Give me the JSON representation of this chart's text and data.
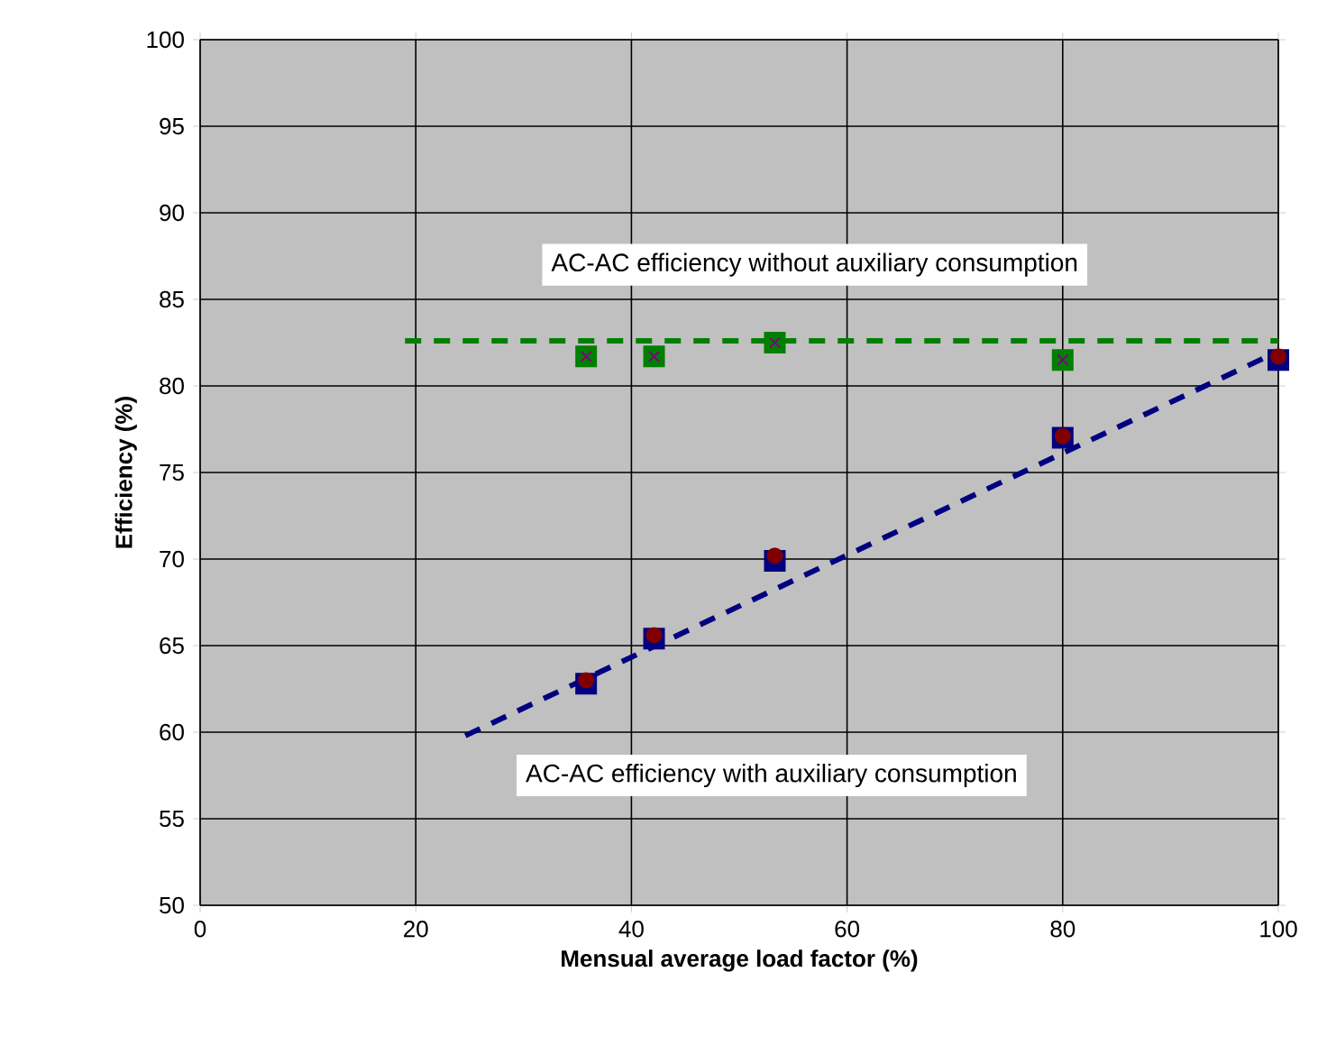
{
  "chart_data": {
    "type": "scatter",
    "xlabel": "Mensual average load factor (%)",
    "ylabel": "Efficiency (%)",
    "xlim": [
      0,
      100
    ],
    "xticks": [
      0,
      20,
      40,
      60,
      80,
      100
    ],
    "ylim": [
      50,
      100
    ],
    "yticks": [
      50,
      55,
      60,
      65,
      70,
      75,
      80,
      85,
      90,
      95,
      100
    ],
    "grid": true,
    "series": [
      {
        "type": "line",
        "color": "#008000",
        "line_style": "dashed",
        "marker": "none",
        "x": [
          19,
          100
        ],
        "values": [
          82.6,
          82.6
        ]
      },
      {
        "type": "line",
        "color": "#000080",
        "line_style": "dashed",
        "marker": "none",
        "x": [
          24.6,
          100
        ],
        "values": [
          59.8,
          82
        ]
      },
      {
        "color": "#008000",
        "marker": "square",
        "x": [
          35.8,
          42.1,
          53.3,
          80
        ],
        "values": [
          81.7,
          81.7,
          82.5,
          81.5
        ]
      },
      {
        "color": "#800080",
        "marker": "cross",
        "x": [
          35.8,
          42.1,
          53.3,
          80
        ],
        "values": [
          81.7,
          81.7,
          82.5,
          81.5
        ]
      },
      {
        "color": "#000080",
        "marker": "square",
        "x": [
          35.8,
          42.1,
          53.3,
          80,
          100
        ],
        "values": [
          62.8,
          65.4,
          69.9,
          77.0,
          81.5
        ]
      },
      {
        "color": "#800000",
        "marker": "circle",
        "x": [
          35.8,
          42.1,
          53.3,
          80,
          100
        ],
        "values": [
          63.0,
          65.6,
          70.2,
          77.1,
          81.7
        ]
      }
    ],
    "annotations": [
      "AC-AC efficiency without auxiliary consumption",
      "AC-AC efficiency with auxiliary consumption"
    ]
  }
}
